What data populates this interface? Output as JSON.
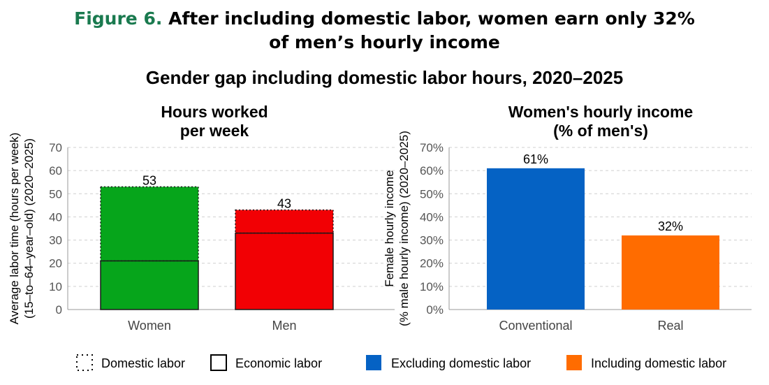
{
  "figure": {
    "number": "Figure 6.",
    "title_line1": "After including domestic labor, women earn only 32%",
    "title_line2": "of men’s hourly income"
  },
  "subtitle": "Gender gap including domestic labor hours, 2020–2025",
  "colors": {
    "women": "#06a51b",
    "men": "#f20004",
    "conventional": "#0562c4",
    "real": "#ff6c00",
    "figure_number": "#1a7a4f"
  },
  "chart_data": [
    {
      "type": "bar",
      "title_lines": [
        "Hours worked",
        "per week"
      ],
      "categories": [
        "Women",
        "Men"
      ],
      "ylabel_lines": [
        "Average labor time (hours per week)",
        "(15–to–64–year–old) (2020–2025)"
      ],
      "ylim": [
        0,
        70
      ],
      "yticks": [
        0,
        10,
        20,
        30,
        40,
        50,
        60,
        70
      ],
      "series": [
        {
          "name": "Economic labor",
          "values": [
            21,
            33
          ]
        },
        {
          "name": "Domestic labor",
          "values": [
            32,
            10
          ]
        }
      ],
      "totals": [
        53,
        43
      ],
      "total_labels": [
        "53",
        "43"
      ],
      "grid": true
    },
    {
      "type": "bar",
      "title_lines": [
        "Women's hourly income",
        "(% of men's)"
      ],
      "categories": [
        "Conventional",
        "Real"
      ],
      "ylabel_lines": [
        "Female hourly income",
        "(% male hourly income) (2020–2025)"
      ],
      "ylim": [
        0,
        70
      ],
      "yticks": [
        0,
        10,
        20,
        30,
        40,
        50,
        60,
        70
      ],
      "ytick_labels": [
        "0%",
        "10%",
        "20%",
        "30%",
        "40%",
        "50%",
        "60%",
        "70%"
      ],
      "values": [
        61,
        32
      ],
      "value_labels": [
        "61%",
        "32%"
      ],
      "grid": true
    }
  ],
  "legend": [
    {
      "label": "Domestic labor",
      "style": "dotted-outline"
    },
    {
      "label": "Economic labor",
      "style": "solid-outline"
    },
    {
      "label": "Excluding domestic labor",
      "color": "#0562c4"
    },
    {
      "label": "Including domestic labor",
      "color": "#ff6c00"
    }
  ]
}
